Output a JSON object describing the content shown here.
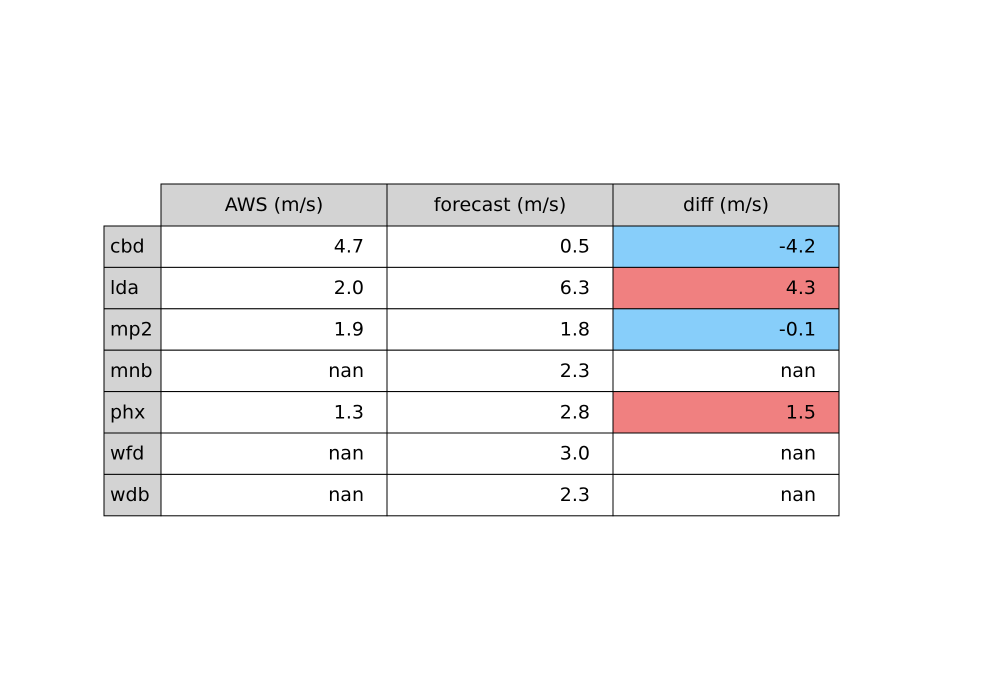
{
  "chart_data": {
    "type": "table",
    "columns": [
      "AWS (m/s)",
      "forecast (m/s)",
      "diff (m/s)"
    ],
    "rows": [
      {
        "label": "cbd",
        "values": [
          "4.7",
          "0.5",
          "-4.2"
        ]
      },
      {
        "label": "lda",
        "values": [
          "2.0",
          "6.3",
          "4.3"
        ]
      },
      {
        "label": "mp2",
        "values": [
          "1.9",
          "1.8",
          "-0.1"
        ]
      },
      {
        "label": "mnb",
        "values": [
          "nan",
          "2.3",
          "nan"
        ]
      },
      {
        "label": "phx",
        "values": [
          "1.3",
          "2.8",
          "1.5"
        ]
      },
      {
        "label": "wfd",
        "values": [
          "nan",
          "3.0",
          "nan"
        ]
      },
      {
        "label": "wdb",
        "values": [
          "nan",
          "2.3",
          "nan"
        ]
      }
    ],
    "colors": {
      "header_bg": "#d3d3d3",
      "cell_bg": "#ffffff",
      "negative_diff_bg": "#87cefa",
      "positive_diff_bg": "#f08080",
      "border": "#000000"
    }
  }
}
